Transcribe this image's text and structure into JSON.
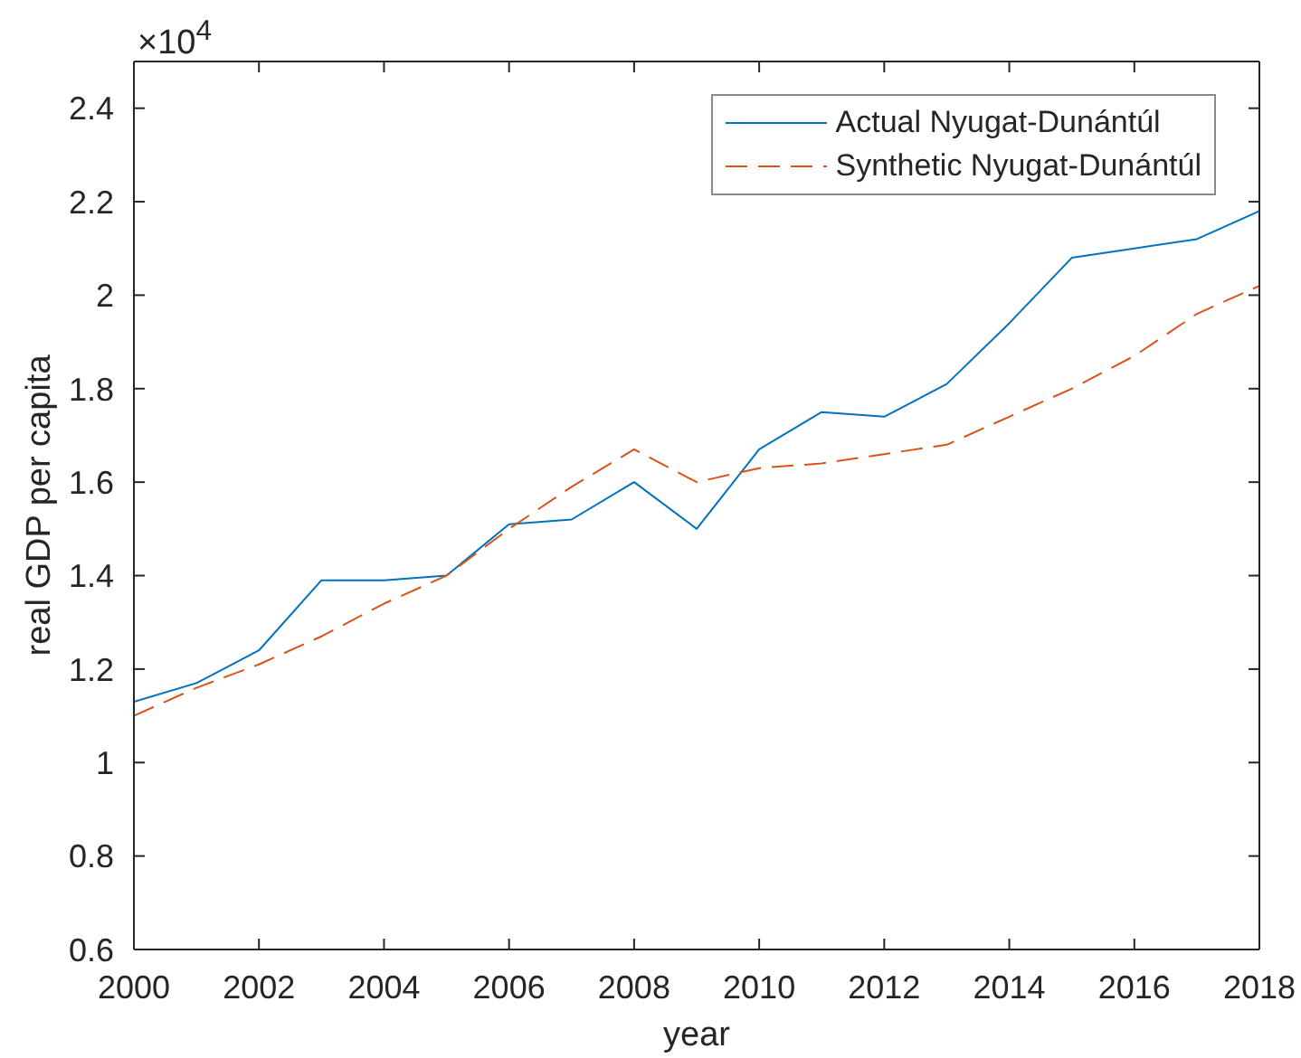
{
  "chart_data": {
    "type": "line",
    "xlabel": "year",
    "ylabel": "real GDP per capita",
    "annotations": [
      "×10$^{4}$"
    ],
    "x": [
      2000,
      2001,
      2002,
      2003,
      2004,
      2005,
      2006,
      2007,
      2008,
      2009,
      2010,
      2011,
      2012,
      2013,
      2014,
      2015,
      2016,
      2017,
      2018
    ],
    "series": [
      {
        "name": "Actual Nyugat-Dunántúl",
        "color": "#0072bd",
        "line_style": "solid",
        "values": [
          1.13,
          1.17,
          1.24,
          1.39,
          1.39,
          1.4,
          1.51,
          1.52,
          1.6,
          1.5,
          1.67,
          1.75,
          1.74,
          1.81,
          1.94,
          2.08,
          2.1,
          2.12,
          2.18
        ]
      },
      {
        "name": "Synthetic Nyugat-Dunántúl",
        "color": "#d95319",
        "line_style": "dashed",
        "values": [
          1.1,
          1.16,
          1.21,
          1.27,
          1.34,
          1.4,
          1.5,
          1.59,
          1.67,
          1.6,
          1.63,
          1.64,
          1.66,
          1.68,
          1.74,
          1.8,
          1.87,
          1.96,
          2.02
        ]
      }
    ],
    "xlim": [
      2000,
      2018
    ],
    "xticks": [
      2000,
      2002,
      2004,
      2006,
      2008,
      2010,
      2012,
      2014,
      2016,
      2018
    ],
    "ylim": [
      0.6,
      2.5
    ],
    "yticks": [
      0.6,
      0.8,
      1,
      1.2,
      1.4,
      1.6,
      1.8,
      2,
      2.2,
      2.4
    ],
    "legend": "top right"
  }
}
